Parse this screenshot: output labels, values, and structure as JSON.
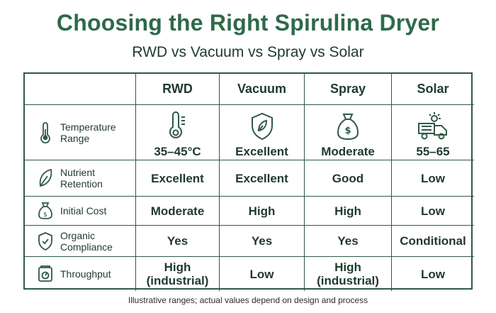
{
  "title": "Choosing the Right Spirulina Dryer",
  "subtitle": "RWD vs Vacuum vs Spray vs Solar",
  "columns": [
    "RWD",
    "Vacuum",
    "Spray",
    "Solar"
  ],
  "rows": [
    {
      "label": "Temperature Range",
      "icon": "thermometer-icon",
      "values": [
        "35–45°C",
        "Excellent",
        "Moderate",
        "55–65"
      ],
      "cell_icons": [
        "thermometer-icon",
        "shield-leaf-icon",
        "money-bag-icon",
        "solar-truck-icon"
      ]
    },
    {
      "label": "Nutrient Retention",
      "icon": "leaf-icon",
      "values": [
        "Excellent",
        "Excellent",
        "Good",
        "Low"
      ]
    },
    {
      "label": "Initial Cost",
      "icon": "money-bag-icon",
      "values": [
        "Moderate",
        "High",
        "High",
        "Low"
      ]
    },
    {
      "label": "Organic Compliance",
      "icon": "shield-check-icon",
      "values": [
        "Yes",
        "Yes",
        "Yes",
        "Conditional"
      ]
    },
    {
      "label": "Throughput",
      "icon": "scale-icon",
      "values": [
        "High (industrial)",
        "Low",
        "High (industrial)",
        "Low"
      ]
    }
  ],
  "footnote": "Illustrative ranges; actual values depend on design and process",
  "colors": {
    "title": "#2e6a4a",
    "border": "#2f5a44",
    "text": "#1f3a2c"
  }
}
